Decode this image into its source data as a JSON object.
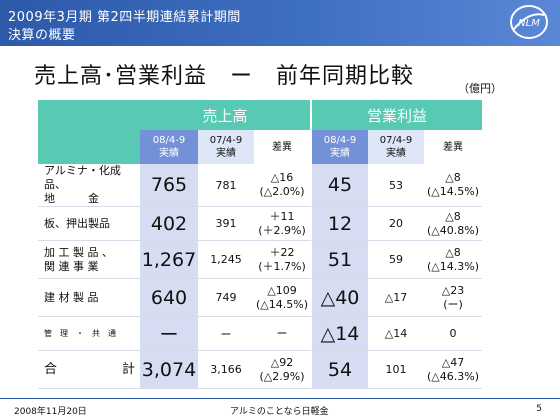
{
  "header": {
    "line1": "2009年3月期 第2四半期連結累計期間",
    "line2": "決算の概要"
  },
  "title": "売上高･営業利益　ー　前年同期比較",
  "unit": "（億円）",
  "table": {
    "group_sales": "売上高",
    "group_profit": "営業利益",
    "col_actual": [
      "08/4-9",
      "実績"
    ],
    "col_prev": [
      "07/4-9",
      "実績"
    ],
    "col_diff": "差異",
    "rows": [
      {
        "label1": "アルミナ・化成品、",
        "label2": "地　　　金",
        "sales": "765",
        "sales_prev": "781",
        "sales_diff1": "△16",
        "sales_diff2": "(△2.0%)",
        "op": "45",
        "op_prev": "53",
        "op_diff1": "△8",
        "op_diff2": "(△14.5%)"
      },
      {
        "label1": "板、押出製品",
        "label2": "",
        "sales": "402",
        "sales_prev": "391",
        "sales_diff1": "＋11",
        "sales_diff2": "(＋2.9%)",
        "op": "12",
        "op_prev": "20",
        "op_diff1": "△8",
        "op_diff2": "(△40.8%)"
      },
      {
        "label1": "加 工 製 品 、",
        "label2": "関 連 事 業",
        "sales": "1,267",
        "sales_prev": "1,245",
        "sales_diff1": "＋22",
        "sales_diff2": "(＋1.7%)",
        "op": "51",
        "op_prev": "59",
        "op_diff1": "△8",
        "op_diff2": "(△14.3%)"
      },
      {
        "label1": "建 材 製 品",
        "label2": "",
        "sales": "640",
        "sales_prev": "749",
        "sales_diff1": "△109",
        "sales_diff2": "(△14.5%)",
        "op": "△40",
        "op_prev": "△17",
        "op_diff1": "△23",
        "op_diff2": "(ー)"
      },
      {
        "label1": "管　理　・　共　通",
        "label2": "",
        "sales": "ー",
        "sales_prev": "ー",
        "sales_diff1": "ー",
        "sales_diff2": "",
        "op": "△14",
        "op_prev": "△14",
        "op_diff1": "0",
        "op_diff2": ""
      },
      {
        "label1": "合　　　　　計",
        "label2": "",
        "sales": "3,074",
        "sales_prev": "3,166",
        "sales_diff1": "△92",
        "sales_diff2": "(△2.9%)",
        "op": "54",
        "op_prev": "101",
        "op_diff1": "△47",
        "op_diff2": "(△46.3%)"
      }
    ]
  },
  "footer": {
    "date": "2008年11月20日",
    "center": "アルミのことなら日軽金",
    "page": "5"
  },
  "logo_text": "NLM",
  "colors": {
    "header_blue": "#2d59a8",
    "group_green": "#58c9b3",
    "actual_blue": "#7391d6",
    "value_cell": "#d6dcf2"
  }
}
